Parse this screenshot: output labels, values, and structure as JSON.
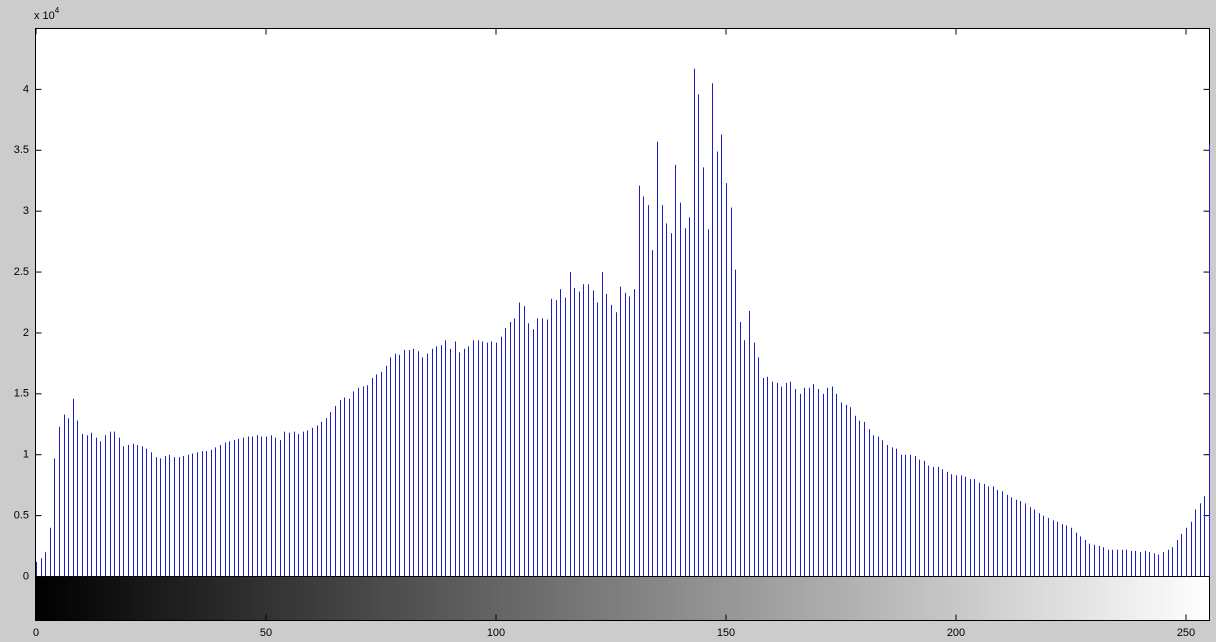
{
  "chart_data": {
    "type": "stem",
    "y_multiplier": {
      "base": "x 10",
      "exponent": "4"
    },
    "color": "#1f1fbf",
    "xlim": [
      0,
      255
    ],
    "xticks": [
      0,
      50,
      100,
      150,
      200,
      250
    ],
    "ylim": [
      0,
      4.5
    ],
    "yticks": [
      0,
      0.5,
      1,
      1.5,
      2,
      2.5,
      3,
      3.5,
      4
    ],
    "x": [
      0,
      1,
      2,
      3,
      4,
      5,
      6,
      7,
      8,
      9,
      10,
      11,
      12,
      13,
      14,
      15,
      16,
      17,
      18,
      19,
      20,
      21,
      22,
      23,
      24,
      25,
      26,
      27,
      28,
      29,
      30,
      31,
      32,
      33,
      34,
      35,
      36,
      37,
      38,
      39,
      40,
      41,
      42,
      43,
      44,
      45,
      46,
      47,
      48,
      49,
      50,
      51,
      52,
      53,
      54,
      55,
      56,
      57,
      58,
      59,
      60,
      61,
      62,
      63,
      64,
      65,
      66,
      67,
      68,
      69,
      70,
      71,
      72,
      73,
      74,
      75,
      76,
      77,
      78,
      79,
      80,
      81,
      82,
      83,
      84,
      85,
      86,
      87,
      88,
      89,
      90,
      91,
      92,
      93,
      94,
      95,
      96,
      97,
      98,
      99,
      100,
      101,
      102,
      103,
      104,
      105,
      106,
      107,
      108,
      109,
      110,
      111,
      112,
      113,
      114,
      115,
      116,
      117,
      118,
      119,
      120,
      121,
      122,
      123,
      124,
      125,
      126,
      127,
      128,
      129,
      130,
      131,
      132,
      133,
      134,
      135,
      136,
      137,
      138,
      139,
      140,
      141,
      142,
      143,
      144,
      145,
      146,
      147,
      148,
      149,
      150,
      151,
      152,
      153,
      154,
      155,
      156,
      157,
      158,
      159,
      160,
      161,
      162,
      163,
      164,
      165,
      166,
      167,
      168,
      169,
      170,
      171,
      172,
      173,
      174,
      175,
      176,
      177,
      178,
      179,
      180,
      181,
      182,
      183,
      184,
      185,
      186,
      187,
      188,
      189,
      190,
      191,
      192,
      193,
      194,
      195,
      196,
      197,
      198,
      199,
      200,
      201,
      202,
      203,
      204,
      205,
      206,
      207,
      208,
      209,
      210,
      211,
      212,
      213,
      214,
      215,
      216,
      217,
      218,
      219,
      220,
      221,
      222,
      223,
      224,
      225,
      226,
      227,
      228,
      229,
      230,
      231,
      232,
      233,
      234,
      235,
      236,
      237,
      238,
      239,
      240,
      241,
      242,
      243,
      244,
      245,
      246,
      247,
      248,
      249,
      250,
      251,
      252,
      253,
      254,
      255
    ],
    "values": [
      0.12,
      0.15,
      0.2,
      0.4,
      0.97,
      1.23,
      1.33,
      1.3,
      1.46,
      1.28,
      1.17,
      1.16,
      1.18,
      1.14,
      1.11,
      1.16,
      1.19,
      1.19,
      1.14,
      1.07,
      1.08,
      1.09,
      1.08,
      1.07,
      1.05,
      1.02,
      0.98,
      0.97,
      0.99,
      1.0,
      0.98,
      0.98,
      0.99,
      1.0,
      1.01,
      1.02,
      1.03,
      1.03,
      1.04,
      1.06,
      1.08,
      1.1,
      1.11,
      1.12,
      1.13,
      1.14,
      1.15,
      1.15,
      1.16,
      1.15,
      1.15,
      1.16,
      1.14,
      1.12,
      1.19,
      1.18,
      1.19,
      1.17,
      1.19,
      1.2,
      1.22,
      1.24,
      1.27,
      1.3,
      1.35,
      1.4,
      1.45,
      1.47,
      1.46,
      1.52,
      1.55,
      1.56,
      1.57,
      1.63,
      1.66,
      1.68,
      1.73,
      1.8,
      1.83,
      1.82,
      1.86,
      1.86,
      1.87,
      1.85,
      1.8,
      1.83,
      1.87,
      1.89,
      1.9,
      1.94,
      1.87,
      1.93,
      1.84,
      1.87,
      1.89,
      1.94,
      1.94,
      1.93,
      1.92,
      1.93,
      1.92,
      1.97,
      2.04,
      2.09,
      2.12,
      2.25,
      2.22,
      2.08,
      2.03,
      2.12,
      2.12,
      2.11,
      2.28,
      2.27,
      2.36,
      2.29,
      2.5,
      2.37,
      2.34,
      2.4,
      2.4,
      2.35,
      2.25,
      2.5,
      2.32,
      2.23,
      2.17,
      2.38,
      2.33,
      2.3,
      2.36,
      3.21,
      3.12,
      3.05,
      2.68,
      3.57,
      3.05,
      2.9,
      2.82,
      3.38,
      3.07,
      2.86,
      2.95,
      4.17,
      3.96,
      3.36,
      2.85,
      4.05,
      3.49,
      3.63,
      3.23,
      3.03,
      2.52,
      2.09,
      1.94,
      2.18,
      1.92,
      1.8,
      1.63,
      1.64,
      1.6,
      1.59,
      1.56,
      1.59,
      1.6,
      1.54,
      1.5,
      1.55,
      1.55,
      1.58,
      1.54,
      1.5,
      1.55,
      1.56,
      1.5,
      1.43,
      1.41,
      1.39,
      1.32,
      1.28,
      1.27,
      1.21,
      1.16,
      1.15,
      1.12,
      1.08,
      1.06,
      1.05,
      1.0,
      1.0,
      1.0,
      0.99,
      0.96,
      0.95,
      0.91,
      0.9,
      0.9,
      0.88,
      0.86,
      0.84,
      0.83,
      0.83,
      0.82,
      0.8,
      0.8,
      0.77,
      0.76,
      0.74,
      0.74,
      0.71,
      0.7,
      0.67,
      0.65,
      0.63,
      0.62,
      0.6,
      0.57,
      0.55,
      0.52,
      0.5,
      0.48,
      0.46,
      0.45,
      0.43,
      0.42,
      0.4,
      0.36,
      0.33,
      0.3,
      0.27,
      0.26,
      0.25,
      0.24,
      0.22,
      0.22,
      0.22,
      0.22,
      0.22,
      0.21,
      0.21,
      0.2,
      0.21,
      0.2,
      0.19,
      0.18,
      0.2,
      0.22,
      0.24,
      0.3,
      0.35,
      0.4,
      0.45,
      0.55,
      0.6,
      0.66,
      3.55
    ]
  }
}
